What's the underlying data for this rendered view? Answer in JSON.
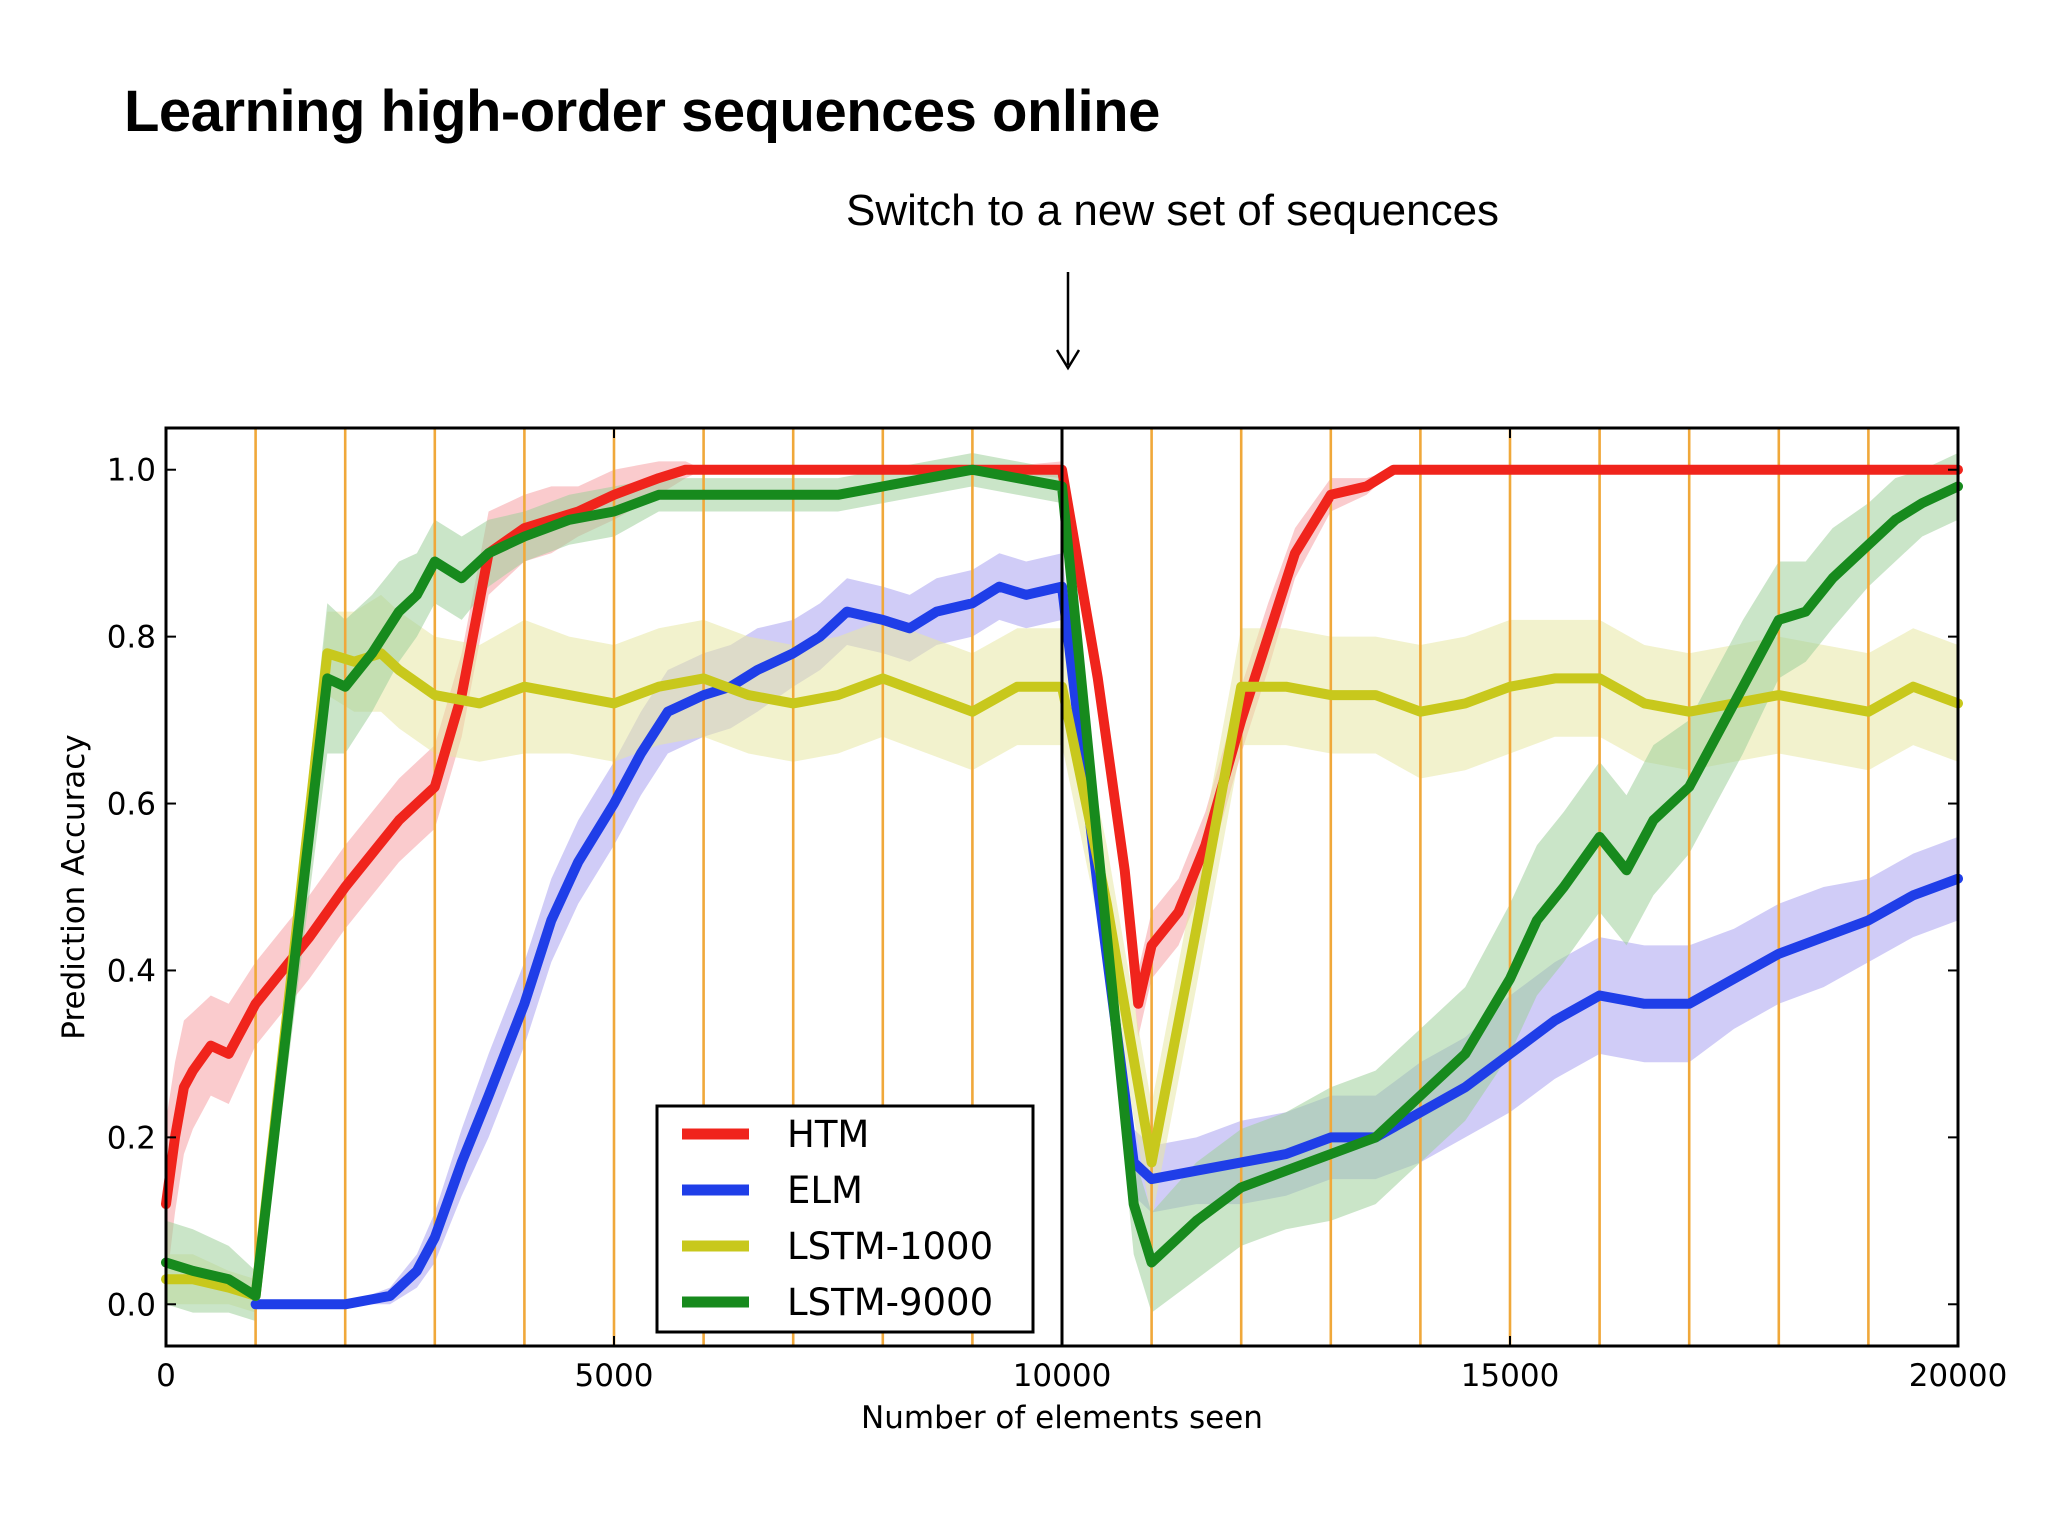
{
  "title": "Learning high-order sequences online",
  "annotation": {
    "text": "Switch to a new set of sequences",
    "arrow_x": 10000
  },
  "colors": {
    "background": "#ffffff",
    "switch_line": "#f0a83a",
    "frame": "#000000"
  },
  "chart_data": {
    "type": "line",
    "title": "",
    "xlabel": "Number of elements seen",
    "ylabel": "Prediction Accuracy",
    "xlim": [
      0,
      20000
    ],
    "ylim": [
      -0.05,
      1.05
    ],
    "xticks": [
      0,
      5000,
      10000,
      15000,
      20000
    ],
    "yticks": [
      0.0,
      0.2,
      0.4,
      0.6,
      0.8,
      1.0
    ],
    "xtick_labels": [
      "0",
      "5000",
      "10000",
      "15000",
      "20000"
    ],
    "ytick_labels": [
      "0.0",
      "0.2",
      "0.4",
      "0.6",
      "0.8",
      "1.0"
    ],
    "grid": false,
    "legend_position": "lower-center",
    "vertical_markers": [
      1000,
      2000,
      3000,
      4000,
      5000,
      6000,
      7000,
      8000,
      9000,
      11000,
      12000,
      13000,
      14000,
      15000,
      16000,
      17000,
      18000,
      19000
    ],
    "switch_point": 10000,
    "series": [
      {
        "name": "HTM",
        "color": "#f0241c",
        "band_color": "#f5a0a4",
        "x": [
          0,
          100,
          200,
          300,
          500,
          700,
          1000,
          1300,
          1600,
          2000,
          2300,
          2600,
          2800,
          3000,
          3300,
          3600,
          4000,
          4300,
          4600,
          5000,
          5500,
          5800,
          6000,
          7000,
          8000,
          9000,
          10000,
          10400,
          10700,
          10850,
          11000,
          11300,
          11600,
          12000,
          12300,
          12600,
          13000,
          13400,
          13700,
          14000,
          15000,
          16000,
          17000,
          18000,
          19000,
          20000
        ],
        "y": [
          0.12,
          0.2,
          0.26,
          0.28,
          0.31,
          0.3,
          0.36,
          0.4,
          0.44,
          0.5,
          0.54,
          0.58,
          0.6,
          0.62,
          0.73,
          0.9,
          0.93,
          0.94,
          0.95,
          0.97,
          0.99,
          1.0,
          1.0,
          1.0,
          1.0,
          1.0,
          1.0,
          0.75,
          0.52,
          0.36,
          0.43,
          0.47,
          0.55,
          0.7,
          0.8,
          0.9,
          0.97,
          0.98,
          1.0,
          1.0,
          1.0,
          1.0,
          1.0,
          1.0,
          1.0,
          1.0
        ],
        "spread": [
          0.1,
          0.09,
          0.08,
          0.07,
          0.06,
          0.06,
          0.05,
          0.05,
          0.05,
          0.05,
          0.05,
          0.05,
          0.05,
          0.05,
          0.05,
          0.05,
          0.04,
          0.04,
          0.03,
          0.03,
          0.02,
          0.01,
          0.0,
          0.0,
          0.0,
          0.0,
          0.01,
          0.03,
          0.04,
          0.04,
          0.04,
          0.04,
          0.04,
          0.04,
          0.04,
          0.03,
          0.02,
          0.01,
          0.0,
          0.0,
          0.0,
          0.0,
          0.0,
          0.0,
          0.0,
          0.0
        ]
      },
      {
        "name": "ELM",
        "color": "#1f3ee8",
        "band_color": "#a9a3f0",
        "x": [
          1000,
          2000,
          2500,
          2800,
          3000,
          3300,
          3600,
          4000,
          4300,
          4600,
          5000,
          5300,
          5600,
          6000,
          6300,
          6600,
          7000,
          7300,
          7600,
          8000,
          8300,
          8600,
          9000,
          9300,
          9600,
          10000,
          10400,
          10800,
          11000,
          11500,
          12000,
          12500,
          13000,
          13500,
          14000,
          14500,
          15000,
          15500,
          16000,
          16500,
          17000,
          17500,
          18000,
          18500,
          19000,
          19500,
          20000
        ],
        "y": [
          0.0,
          0.0,
          0.01,
          0.04,
          0.08,
          0.17,
          0.25,
          0.36,
          0.46,
          0.53,
          0.6,
          0.66,
          0.71,
          0.73,
          0.74,
          0.76,
          0.78,
          0.8,
          0.83,
          0.82,
          0.81,
          0.83,
          0.84,
          0.86,
          0.85,
          0.86,
          0.5,
          0.17,
          0.15,
          0.16,
          0.17,
          0.18,
          0.2,
          0.2,
          0.23,
          0.26,
          0.3,
          0.34,
          0.37,
          0.36,
          0.36,
          0.39,
          0.42,
          0.44,
          0.46,
          0.49,
          0.51
        ],
        "spread": [
          0.0,
          0.0,
          0.01,
          0.02,
          0.03,
          0.04,
          0.05,
          0.05,
          0.05,
          0.05,
          0.05,
          0.05,
          0.05,
          0.05,
          0.05,
          0.05,
          0.04,
          0.04,
          0.04,
          0.04,
          0.04,
          0.04,
          0.04,
          0.04,
          0.04,
          0.04,
          0.04,
          0.04,
          0.04,
          0.04,
          0.05,
          0.05,
          0.05,
          0.05,
          0.06,
          0.06,
          0.07,
          0.07,
          0.07,
          0.07,
          0.07,
          0.06,
          0.06,
          0.06,
          0.05,
          0.05,
          0.05
        ]
      },
      {
        "name": "LSTM-1000",
        "color": "#c8c81c",
        "band_color": "#e8e8a4",
        "x": [
          0,
          300,
          700,
          1000,
          1800,
          2100,
          2400,
          2600,
          3000,
          3500,
          4000,
          4500,
          5000,
          5500,
          6000,
          6500,
          7000,
          7500,
          8000,
          8500,
          9000,
          9500,
          10000,
          10500,
          11000,
          11500,
          12000,
          12500,
          13000,
          13500,
          14000,
          14500,
          15000,
          15500,
          16000,
          16500,
          17000,
          17500,
          18000,
          18500,
          19000,
          19500,
          20000
        ],
        "y": [
          0.03,
          0.03,
          0.02,
          0.01,
          0.78,
          0.77,
          0.78,
          0.76,
          0.73,
          0.72,
          0.74,
          0.73,
          0.72,
          0.74,
          0.75,
          0.73,
          0.72,
          0.73,
          0.75,
          0.73,
          0.71,
          0.74,
          0.74,
          0.48,
          0.17,
          0.45,
          0.74,
          0.74,
          0.73,
          0.73,
          0.71,
          0.72,
          0.74,
          0.75,
          0.75,
          0.72,
          0.71,
          0.72,
          0.73,
          0.72,
          0.71,
          0.74,
          0.72
        ],
        "spread": [
          0.03,
          0.03,
          0.02,
          0.02,
          0.05,
          0.06,
          0.07,
          0.07,
          0.07,
          0.07,
          0.08,
          0.07,
          0.07,
          0.07,
          0.07,
          0.07,
          0.07,
          0.07,
          0.07,
          0.07,
          0.07,
          0.07,
          0.07,
          0.07,
          0.07,
          0.07,
          0.07,
          0.07,
          0.07,
          0.07,
          0.08,
          0.08,
          0.08,
          0.07,
          0.07,
          0.07,
          0.07,
          0.07,
          0.07,
          0.07,
          0.07,
          0.07,
          0.07
        ]
      },
      {
        "name": "LSTM-9000",
        "color": "#178a1d",
        "band_color": "#9fd09a",
        "x": [
          0,
          300,
          700,
          1000,
          1800,
          2000,
          2300,
          2600,
          2800,
          3000,
          3300,
          3600,
          4000,
          4500,
          5000,
          5500,
          6000,
          6500,
          7000,
          7500,
          8000,
          8500,
          9000,
          9500,
          10000,
          10400,
          10800,
          11000,
          11500,
          12000,
          12500,
          13000,
          13500,
          14000,
          14500,
          15000,
          15300,
          15600,
          16000,
          16300,
          16600,
          17000,
          17300,
          17600,
          18000,
          18300,
          18600,
          19000,
          19300,
          19600,
          20000
        ],
        "y": [
          0.05,
          0.04,
          0.03,
          0.01,
          0.75,
          0.74,
          0.78,
          0.83,
          0.85,
          0.89,
          0.87,
          0.9,
          0.92,
          0.94,
          0.95,
          0.97,
          0.97,
          0.97,
          0.97,
          0.97,
          0.98,
          0.99,
          1.0,
          0.99,
          0.98,
          0.55,
          0.12,
          0.05,
          0.1,
          0.14,
          0.16,
          0.18,
          0.2,
          0.25,
          0.3,
          0.39,
          0.46,
          0.5,
          0.56,
          0.52,
          0.58,
          0.62,
          0.68,
          0.74,
          0.82,
          0.83,
          0.87,
          0.91,
          0.94,
          0.96,
          0.98
        ],
        "spread": [
          0.05,
          0.05,
          0.04,
          0.03,
          0.09,
          0.08,
          0.07,
          0.06,
          0.05,
          0.05,
          0.05,
          0.04,
          0.03,
          0.03,
          0.03,
          0.02,
          0.02,
          0.02,
          0.02,
          0.02,
          0.02,
          0.02,
          0.02,
          0.02,
          0.02,
          0.05,
          0.06,
          0.06,
          0.07,
          0.07,
          0.07,
          0.08,
          0.08,
          0.08,
          0.08,
          0.09,
          0.09,
          0.09,
          0.09,
          0.09,
          0.09,
          0.08,
          0.08,
          0.08,
          0.07,
          0.06,
          0.06,
          0.05,
          0.05,
          0.04,
          0.04
        ]
      }
    ]
  }
}
